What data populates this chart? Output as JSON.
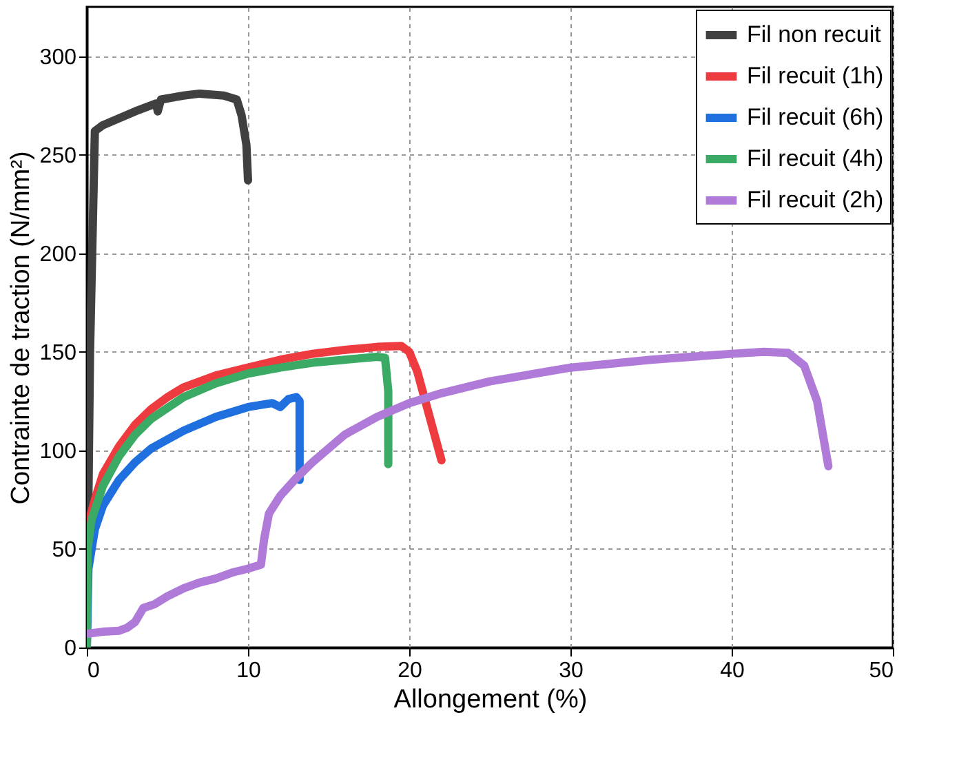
{
  "chart_data": {
    "type": "line",
    "xlabel": "Allongement (%)",
    "ylabel": "Contrainte de traction (N/mm²)",
    "xlim": [
      0,
      50
    ],
    "xticks": [
      0,
      10,
      20,
      30,
      40,
      50
    ],
    "ylim": [
      0,
      325
    ],
    "yticks": [
      0,
      50,
      100,
      150,
      200,
      250,
      300
    ],
    "grid": true,
    "legend": "top right",
    "line_style": "solid",
    "marker": "none",
    "series": [
      {
        "name": "Fil non recuit",
        "color": "#404040",
        "x": [
          0,
          0.2,
          0.5,
          1,
          3,
          4.3,
          4.4,
          4.6,
          6,
          7,
          8.5,
          9.3,
          9.6,
          9.9,
          10
        ],
        "values": [
          0,
          150,
          262,
          265,
          272,
          276,
          272,
          278,
          280,
          281,
          280,
          278,
          270,
          255,
          237
        ]
      },
      {
        "name": "Fil recuit (1h)",
        "color": "#ee3b3f",
        "x": [
          0,
          0.5,
          1,
          2,
          3,
          4,
          5,
          6,
          8,
          10,
          12,
          14,
          16,
          18,
          19.5,
          20,
          20.5,
          21,
          21.5,
          22
        ],
        "values": [
          60,
          75,
          88,
          102,
          113,
          121,
          127,
          132,
          138,
          142,
          146,
          149,
          151,
          152.5,
          153,
          150,
          140,
          125,
          110,
          95
        ]
      },
      {
        "name": "Fil recuit (6h)",
        "color": "#1f6fdf",
        "x": [
          0,
          0.1,
          0.5,
          1,
          2,
          3,
          4,
          6,
          8,
          10,
          11.5,
          12,
          12.5,
          13,
          13.2,
          13.2
        ],
        "values": [
          0,
          40,
          60,
          72,
          85,
          94,
          101,
          110,
          117,
          122,
          124,
          122,
          126,
          127,
          125,
          85
        ]
      },
      {
        "name": "Fil recuit (4h)",
        "color": "#3aaa65",
        "x": [
          0,
          0.05,
          0.3,
          1,
          2,
          3,
          4,
          6,
          8,
          10,
          12,
          14,
          16,
          18,
          18.5,
          18.7,
          18.7
        ],
        "values": [
          0,
          50,
          65,
          82,
          97,
          108,
          116,
          127,
          134,
          139,
          142,
          144.5,
          146,
          147.5,
          147,
          130,
          93
        ]
      },
      {
        "name": "Fil recuit (2h)",
        "color": "#b07ad8",
        "x": [
          0,
          1,
          2,
          2.5,
          3,
          3.5,
          4.2,
          5,
          6,
          7,
          8,
          9,
          10,
          10.8,
          11,
          11.3,
          12,
          13,
          14,
          15,
          16,
          18,
          20,
          22,
          25,
          30,
          35,
          40,
          42,
          43.5,
          44.5,
          45.3,
          46
        ],
        "values": [
          7,
          8,
          8.5,
          10,
          13,
          20,
          22,
          26,
          30,
          33,
          35,
          38,
          40,
          42,
          55,
          68,
          77,
          86,
          94,
          101,
          108,
          117,
          124,
          129,
          135,
          142,
          146,
          149,
          150,
          149.5,
          143,
          125,
          92
        ]
      }
    ]
  }
}
